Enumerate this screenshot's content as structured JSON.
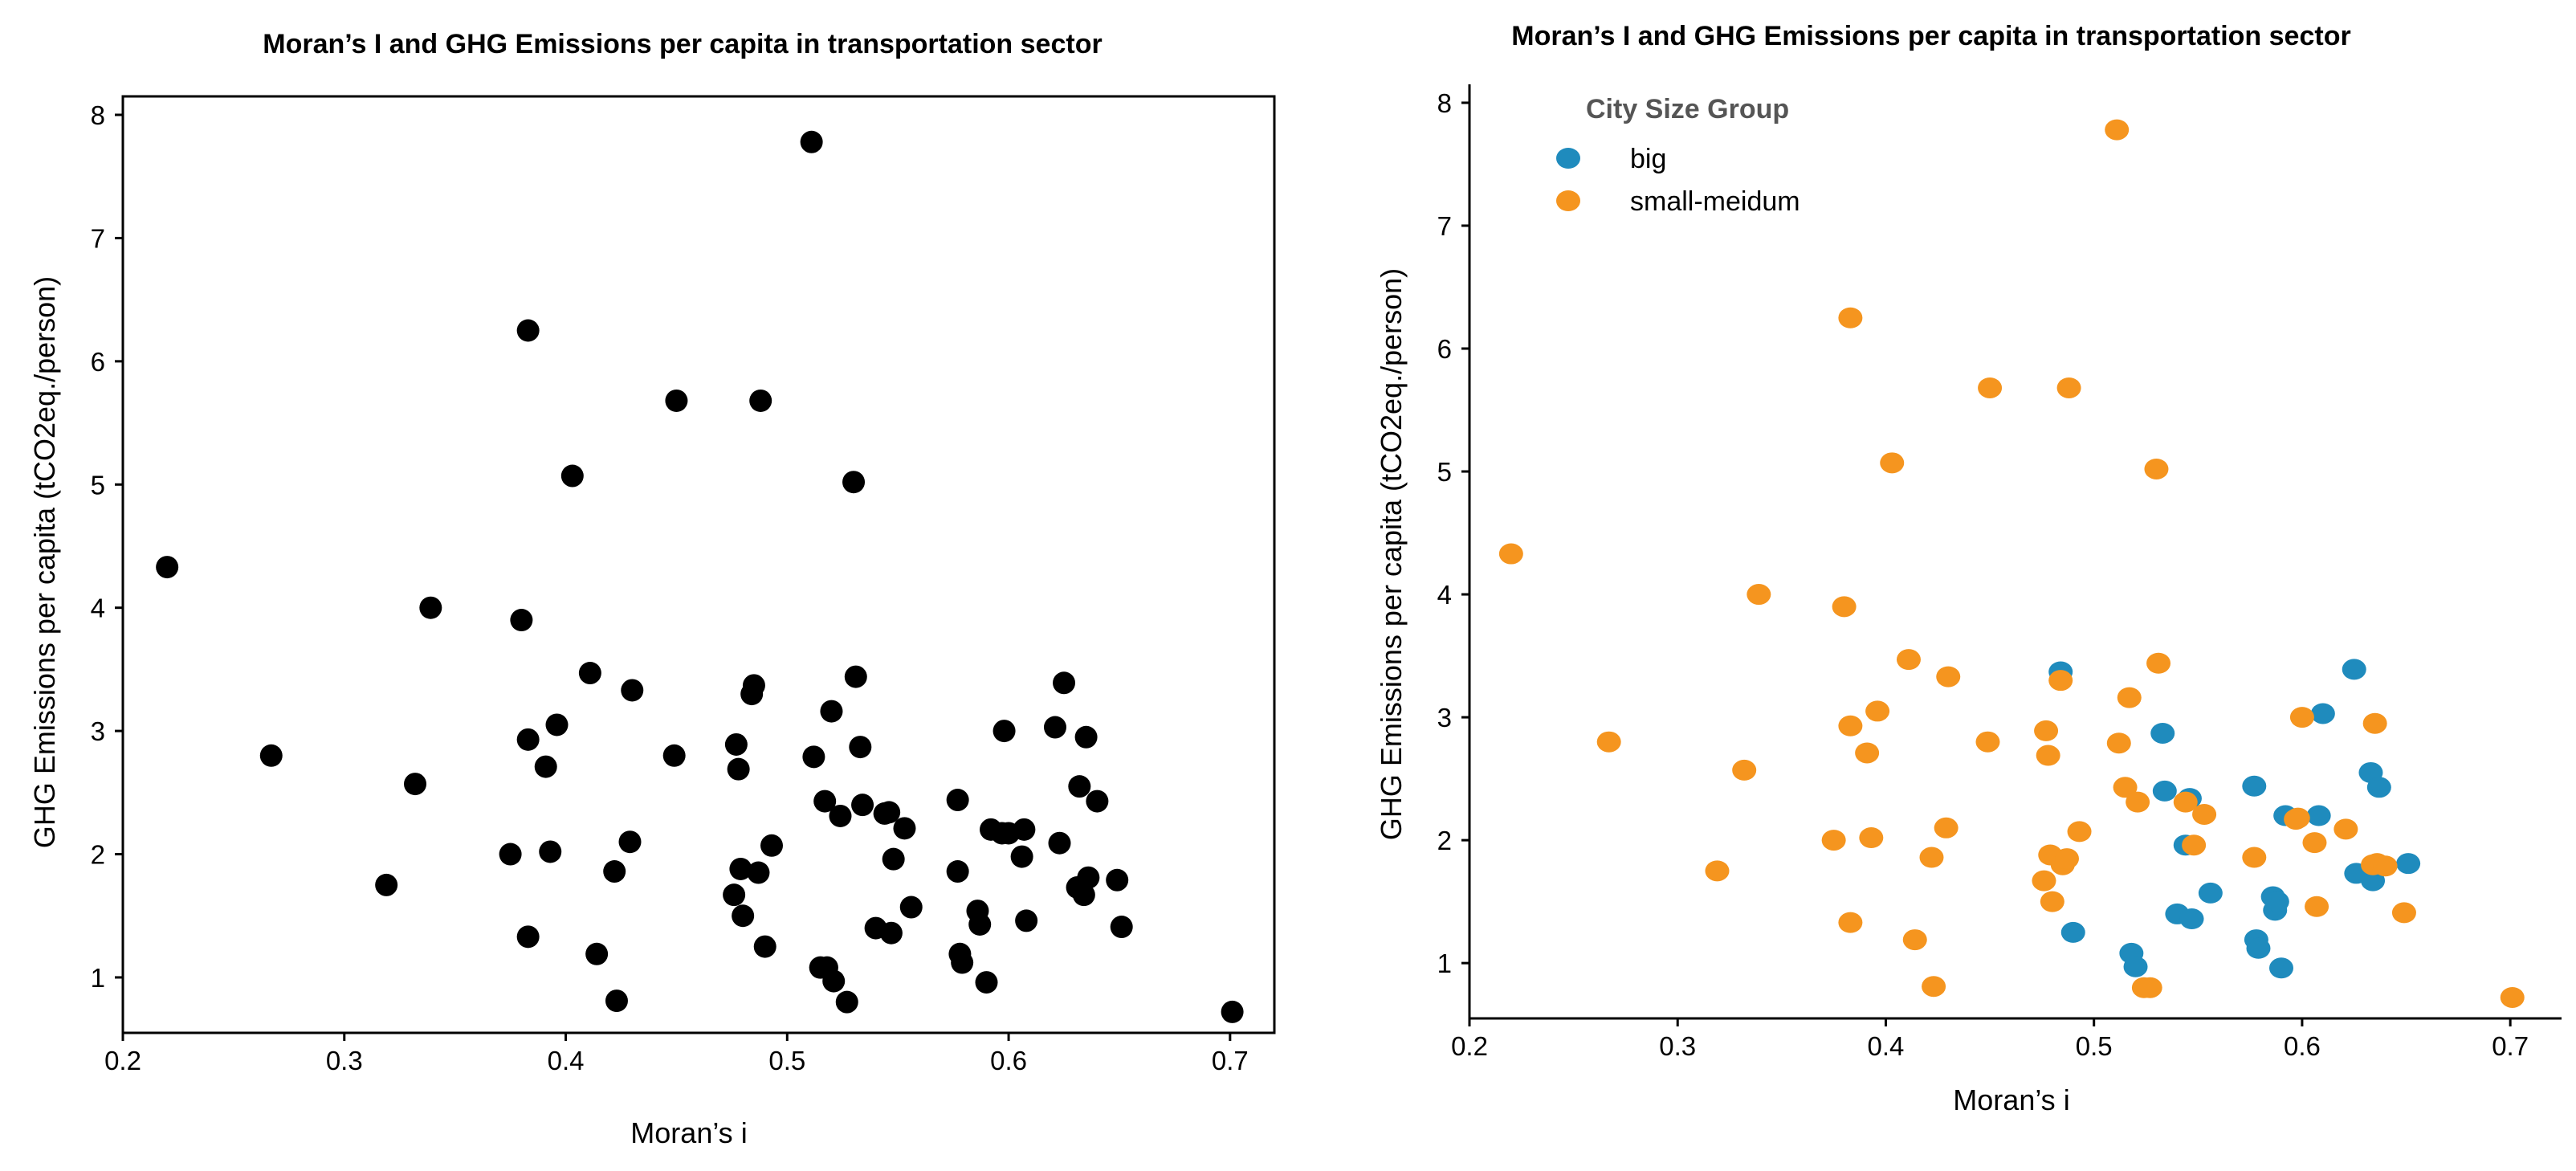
{
  "chart_data": [
    {
      "type": "scatter",
      "title": "Moran’s I and GHG Emissions per capita in transportation sector",
      "xlabel": "Moran’s i",
      "ylabel": "GHG Emissions per capita (tCO2eq./person)",
      "xlim": [
        0.2,
        0.72
      ],
      "ylim": [
        0.55,
        8.15
      ],
      "xticks": [
        "0.2",
        "0.3",
        "0.4",
        "0.5",
        "0.6",
        "0.7"
      ],
      "yticks": [
        "1",
        "2",
        "3",
        "4",
        "5",
        "6",
        "7",
        "8"
      ],
      "point_color": "#000000",
      "x": [
        0.22,
        0.267,
        0.319,
        0.332,
        0.339,
        0.375,
        0.38,
        0.383,
        0.383,
        0.383,
        0.391,
        0.393,
        0.396,
        0.403,
        0.411,
        0.414,
        0.422,
        0.423,
        0.429,
        0.43,
        0.45,
        0.449,
        0.476,
        0.477,
        0.478,
        0.479,
        0.48,
        0.484,
        0.485,
        0.487,
        0.488,
        0.49,
        0.493,
        0.511,
        0.512,
        0.515,
        0.517,
        0.518,
        0.52,
        0.521,
        0.524,
        0.527,
        0.53,
        0.531,
        0.533,
        0.534,
        0.54,
        0.544,
        0.546,
        0.547,
        0.548,
        0.553,
        0.556,
        0.577,
        0.577,
        0.578,
        0.579,
        0.586,
        0.587,
        0.59,
        0.592,
        0.597,
        0.598,
        0.6,
        0.606,
        0.607,
        0.608,
        0.621,
        0.623,
        0.625,
        0.631,
        0.632,
        0.634,
        0.635,
        0.636,
        0.64,
        0.649,
        0.651,
        0.701
      ],
      "y": [
        4.33,
        2.8,
        1.75,
        2.57,
        4.0,
        2.0,
        3.9,
        6.25,
        2.93,
        1.33,
        2.71,
        2.02,
        3.05,
        5.07,
        3.47,
        1.19,
        1.86,
        0.81,
        2.1,
        3.33,
        5.68,
        2.8,
        1.67,
        2.89,
        2.69,
        1.88,
        1.5,
        3.3,
        3.37,
        1.85,
        5.68,
        1.25,
        2.07,
        7.78,
        2.79,
        1.08,
        2.43,
        1.08,
        3.16,
        0.97,
        2.31,
        0.8,
        5.02,
        3.44,
        2.87,
        2.4,
        1.4,
        2.33,
        2.34,
        1.36,
        1.96,
        2.21,
        1.57,
        2.44,
        1.86,
        1.19,
        1.12,
        1.54,
        1.43,
        0.96,
        2.2,
        2.17,
        3.0,
        2.17,
        1.98,
        2.2,
        1.46,
        3.03,
        2.09,
        3.39,
        1.73,
        2.55,
        1.67,
        2.95,
        1.81,
        2.43,
        1.79,
        1.41,
        0.72
      ]
    },
    {
      "type": "scatter",
      "title": "Moran’s I and GHG Emissions per capita in transportation sector",
      "xlabel": "Moran’s i",
      "ylabel": "GHG Emissions per capita (tCO2eq./person)",
      "xlim": [
        0.2,
        0.72
      ],
      "ylim": [
        0.55,
        8.15
      ],
      "xticks": [
        "0.2",
        "0.3",
        "0.4",
        "0.5",
        "0.6",
        "0.7"
      ],
      "yticks": [
        "1",
        "2",
        "3",
        "4",
        "5",
        "6",
        "7",
        "8"
      ],
      "legend": {
        "title": "City Size Group",
        "location": "top-left"
      },
      "series": [
        {
          "name": "big",
          "color": "#1f8bbd",
          "x": [
            0.484,
            0.49,
            0.518,
            0.52,
            0.533,
            0.534,
            0.54,
            0.544,
            0.546,
            0.547,
            0.556,
            0.577,
            0.578,
            0.579,
            0.586,
            0.587,
            0.588,
            0.59,
            0.592,
            0.608,
            0.61,
            0.625,
            0.626,
            0.633,
            0.634,
            0.637,
            0.651
          ],
          "y": [
            3.37,
            1.25,
            1.08,
            0.97,
            2.87,
            2.4,
            1.4,
            1.96,
            2.34,
            1.36,
            1.57,
            2.44,
            1.19,
            1.12,
            1.54,
            1.43,
            1.5,
            0.96,
            2.2,
            2.2,
            3.03,
            3.39,
            1.73,
            2.55,
            1.67,
            2.43,
            1.81
          ]
        },
        {
          "name": "small-meidum",
          "color": "#f5951f",
          "x": [
            0.22,
            0.267,
            0.319,
            0.332,
            0.339,
            0.375,
            0.38,
            0.383,
            0.383,
            0.383,
            0.391,
            0.393,
            0.396,
            0.403,
            0.411,
            0.414,
            0.422,
            0.423,
            0.429,
            0.43,
            0.45,
            0.449,
            0.476,
            0.477,
            0.478,
            0.479,
            0.48,
            0.484,
            0.485,
            0.487,
            0.488,
            0.493,
            0.511,
            0.512,
            0.515,
            0.517,
            0.521,
            0.524,
            0.527,
            0.53,
            0.531,
            0.544,
            0.548,
            0.553,
            0.577,
            0.597,
            0.598,
            0.6,
            0.606,
            0.607,
            0.621,
            0.634,
            0.635,
            0.636,
            0.64,
            0.649,
            0.701
          ],
          "y": [
            4.33,
            2.8,
            1.75,
            2.57,
            4.0,
            2.0,
            3.9,
            6.25,
            2.93,
            1.33,
            2.71,
            2.02,
            3.05,
            5.07,
            3.47,
            1.19,
            1.86,
            0.81,
            2.1,
            3.33,
            5.68,
            2.8,
            1.67,
            2.89,
            2.69,
            1.88,
            1.5,
            3.3,
            1.8,
            1.85,
            5.68,
            2.07,
            7.78,
            2.79,
            2.43,
            3.16,
            2.31,
            0.8,
            0.8,
            5.02,
            3.44,
            2.31,
            1.96,
            2.21,
            1.86,
            2.17,
            2.18,
            3.0,
            1.98,
            1.46,
            2.09,
            1.8,
            2.95,
            1.81,
            1.79,
            1.41,
            0.72
          ]
        }
      ]
    }
  ]
}
